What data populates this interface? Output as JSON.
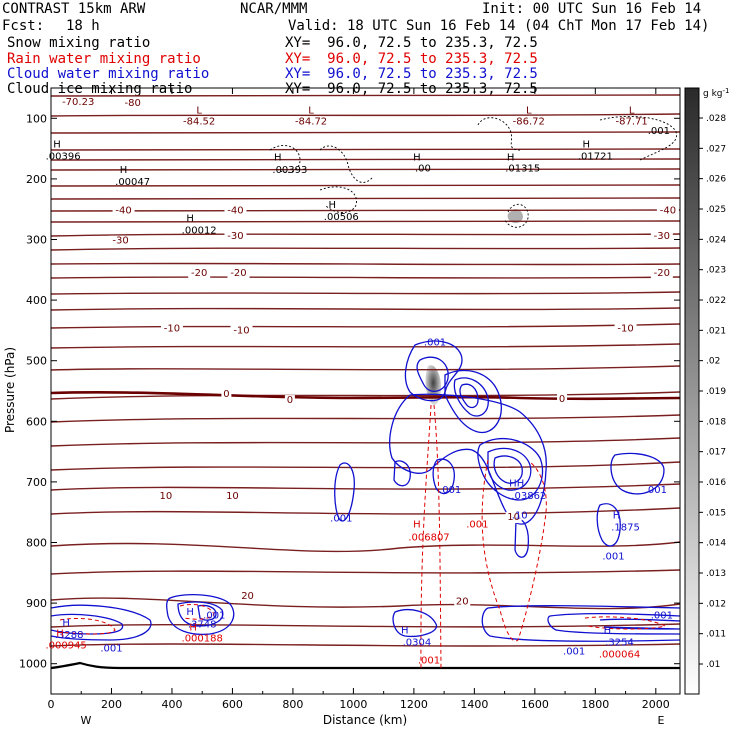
{
  "header": {
    "model": "CONTRAST 15km ARW",
    "center": "NCAR/MMM",
    "init": "Init: 00 UTC Sun 16 Feb 14",
    "fcst_label": "Fcst:",
    "fcst_value": "18 h",
    "valid": "Valid: 18 UTC Sun 16 Feb 14 (04 ChT Mon 17 Feb 14)",
    "fields": [
      {
        "name": "Snow mixing ratio",
        "xy": "XY=  96.0, 72.5 to 235.3, 72.5",
        "color": "#000000"
      },
      {
        "name": "Rain water mixing ratio",
        "xy": "XY=  96.0, 72.5 to 235.3, 72.5",
        "color": "#e00000"
      },
      {
        "name": "Cloud water mixing ratio",
        "xy": "XY=  96.0, 72.5 to 235.3, 72.5",
        "color": "#1010d0"
      },
      {
        "name": "Cloud ice mixing ratio",
        "xy": "XY=  96.0, 72.5 to 235.3, 72.5",
        "color": "#000000"
      }
    ]
  },
  "chart_data": {
    "type": "contour",
    "xlabel": "Distance (km)",
    "ylabel": "Pressure (hPa)",
    "xlim": [
      0,
      2080
    ],
    "ylim": [
      1050,
      50
    ],
    "xticks": [
      0,
      200,
      400,
      600,
      800,
      1000,
      1200,
      1400,
      1600,
      1800,
      2000
    ],
    "yticks": [
      100,
      200,
      300,
      400,
      500,
      600,
      700,
      800,
      900,
      1000
    ],
    "west_label": "W",
    "east_label": "E",
    "colorbar": {
      "unit": "g kg",
      "unit_exp": "-1",
      "levels": [
        ".01",
        ".011",
        ".012",
        ".013",
        ".014",
        ".015",
        ".016",
        ".017",
        ".018",
        ".019",
        ".02",
        ".021",
        ".022",
        ".023",
        ".024",
        ".025",
        ".026",
        ".027",
        ".028"
      ]
    },
    "temperature_contours": {
      "color": "#7a1f1f",
      "zero_color": "#6b0000",
      "labels": [
        {
          "text": "-80",
          "x": 270,
          "p": 80
        },
        {
          "text": "-70.23",
          "x": 90,
          "p": 78
        },
        {
          "text": "-40",
          "x": 240,
          "p": 257
        },
        {
          "text": "-40",
          "x": 610,
          "p": 257
        },
        {
          "text": "-40",
          "x": 2040,
          "p": 257
        },
        {
          "text": "-30",
          "x": 230,
          "p": 307
        },
        {
          "text": "-30",
          "x": 610,
          "p": 299
        },
        {
          "text": "-30",
          "x": 2020,
          "p": 299
        },
        {
          "text": "-20",
          "x": 490,
          "p": 360
        },
        {
          "text": "-20",
          "x": 620,
          "p": 360
        },
        {
          "text": "-20",
          "x": 2020,
          "p": 360
        },
        {
          "text": "-10",
          "x": 400,
          "p": 452
        },
        {
          "text": "-10",
          "x": 630,
          "p": 455
        },
        {
          "text": "-10",
          "x": 1900,
          "p": 452
        },
        {
          "text": "0",
          "x": 580,
          "p": 560
        },
        {
          "text": "0",
          "x": 790,
          "p": 570
        },
        {
          "text": "0",
          "x": 1690,
          "p": 568
        },
        {
          "text": "10",
          "x": 380,
          "p": 728
        },
        {
          "text": "10",
          "x": 600,
          "p": 728
        },
        {
          "text": "10",
          "x": 1530,
          "p": 763
        },
        {
          "text": "20",
          "x": 650,
          "p": 893
        },
        {
          "text": "20",
          "x": 1360,
          "p": 902
        }
      ]
    },
    "lows": [
      {
        "text": "L",
        "value": "-84.52",
        "x": 490,
        "p": 92,
        "vp": 110
      },
      {
        "text": "L",
        "value": "-84.72",
        "x": 860,
        "p": 92,
        "vp": 110
      },
      {
        "text": "L",
        "value": "-86.72",
        "x": 1580,
        "p": 92,
        "vp": 110
      },
      {
        "text": "L",
        "value": "-87.71",
        "x": 1920,
        "p": 92,
        "vp": 110
      }
    ],
    "snow_labels": [
      {
        "text": "H",
        "x": 20,
        "p": 148
      },
      {
        "text": ".00396",
        "x": 40,
        "p": 168
      },
      {
        "text": "H",
        "x": 240,
        "p": 190
      },
      {
        "text": ".00047",
        "x": 270,
        "p": 210
      },
      {
        "text": "H",
        "x": 750,
        "p": 170
      },
      {
        "text": ".00393",
        "x": 790,
        "p": 190
      },
      {
        "text": "H",
        "x": 1210,
        "p": 170
      },
      {
        "text": ".00",
        "x": 1230,
        "p": 188
      },
      {
        "text": "H",
        "x": 1520,
        "p": 170
      },
      {
        "text": ".01315",
        "x": 1560,
        "p": 188
      },
      {
        "text": "H",
        "x": 1770,
        "p": 148
      },
      {
        "text": ".01721",
        "x": 1800,
        "p": 168
      },
      {
        "text": ".001",
        "x": 2010,
        "p": 126
      },
      {
        "text": "H",
        "x": 930,
        "p": 248
      },
      {
        "text": ".00506",
        "x": 960,
        "p": 268
      },
      {
        "text": "H",
        "x": 460,
        "p": 270
      },
      {
        "text": ".00012",
        "x": 490,
        "p": 290
      }
    ],
    "cloud_labels": [
      {
        "text": ".001",
        "x": 1270,
        "p": 475
      },
      {
        "text": ".001",
        "x": 960,
        "p": 765
      },
      {
        "text": ".001",
        "x": 1320,
        "p": 718
      },
      {
        "text": "HH",
        "x": 1540,
        "p": 708
      },
      {
        "text": ".03862",
        "x": 1580,
        "p": 728
      },
      {
        "text": ".10",
        "x": 1550,
        "p": 760
      },
      {
        "text": ".001",
        "x": 2000,
        "p": 718
      },
      {
        "text": "H",
        "x": 1870,
        "p": 760
      },
      {
        "text": ".1875",
        "x": 1900,
        "p": 780
      },
      {
        "text": ".001",
        "x": 1860,
        "p": 828
      },
      {
        "text": "H",
        "x": 50,
        "p": 938
      },
      {
        "text": ".3288",
        "x": 60,
        "p": 958
      },
      {
        "text": ".001",
        "x": 200,
        "p": 980
      },
      {
        "text": "H",
        "x": 460,
        "p": 920
      },
      {
        "text": ".3748",
        "x": 500,
        "p": 940
      },
      {
        "text": ".001",
        "x": 540,
        "p": 925
      },
      {
        "text": "H",
        "x": 1170,
        "p": 950
      },
      {
        "text": ".0304",
        "x": 1210,
        "p": 970
      },
      {
        "text": "H",
        "x": 1840,
        "p": 950
      },
      {
        "text": ".3254",
        "x": 1880,
        "p": 970
      },
      {
        "text": ".001",
        "x": 2020,
        "p": 925
      },
      {
        "text": ".001",
        "x": 1730,
        "p": 985
      }
    ],
    "rain_labels": [
      {
        "text": "H",
        "x": 1210,
        "p": 775
      },
      {
        "text": ".006807",
        "x": 1250,
        "p": 797
      },
      {
        "text": ".001",
        "x": 1410,
        "p": 775
      },
      {
        "text": ".001",
        "x": 1250,
        "p": 1000
      },
      {
        "text": "H",
        "x": 30,
        "p": 955
      },
      {
        "text": ".000945",
        "x": 50,
        "p": 975
      },
      {
        "text": "H",
        "x": 470,
        "p": 945
      },
      {
        "text": ".000188",
        "x": 500,
        "p": 963
      },
      {
        "text": ".000064",
        "x": 1880,
        "p": 990
      }
    ]
  }
}
